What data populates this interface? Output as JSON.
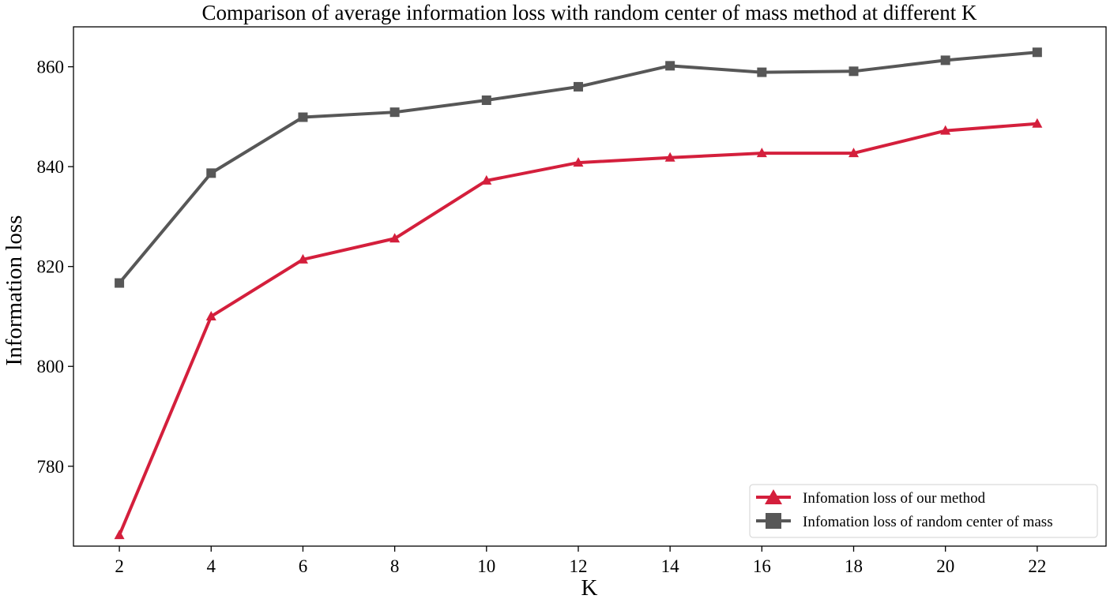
{
  "chart_data": {
    "type": "line",
    "title": "Comparison of average information loss with random center of mass method at different K",
    "xlabel": "K",
    "ylabel": "Information loss",
    "x": [
      2,
      4,
      6,
      8,
      10,
      12,
      14,
      16,
      18,
      20,
      22
    ],
    "xlim": [
      1,
      23.5
    ],
    "ylim": [
      764,
      868
    ],
    "x_ticks": [
      2,
      4,
      6,
      8,
      10,
      12,
      14,
      16,
      18,
      20,
      22
    ],
    "y_ticks": [
      780,
      800,
      820,
      840,
      860
    ],
    "grid": false,
    "legend_position": "bottom-right",
    "series": [
      {
        "name": "Infomation loss of our method",
        "color": "#d41f3c",
        "marker": "triangle",
        "values": [
          766.2,
          810.0,
          821.4,
          825.6,
          837.2,
          840.8,
          841.8,
          842.7,
          842.7,
          847.2,
          848.6
        ]
      },
      {
        "name": "Infomation loss of random center of mass",
        "color": "#575757",
        "marker": "square",
        "values": [
          816.7,
          838.7,
          849.9,
          850.9,
          853.3,
          856.0,
          860.2,
          858.9,
          859.1,
          861.3,
          862.9
        ]
      }
    ]
  }
}
